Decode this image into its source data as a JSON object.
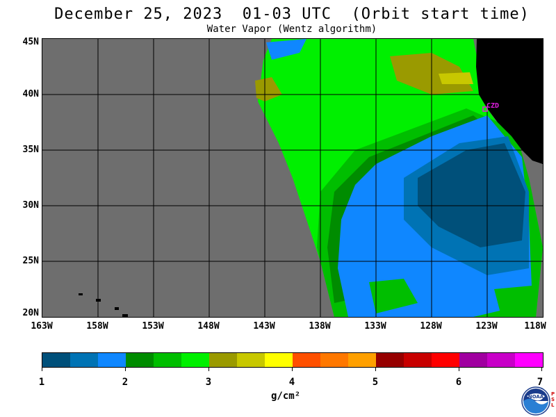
{
  "title": "December 25, 2023  01-03 UTC  (Orbit start time)",
  "subtitle": "Water Vapor (Wentz algorithm)",
  "map": {
    "background_color": "#6e6e6e",
    "land_color": "#000000",
    "lat_labels": [
      "45N",
      "40N",
      "35N",
      "30N",
      "25N",
      "20N"
    ],
    "lon_labels": [
      "163W",
      "158W",
      "153W",
      "148W",
      "143W",
      "138W",
      "133W",
      "128W",
      "123W",
      "118W"
    ],
    "station_label": "CZD"
  },
  "colorbar": {
    "colors": [
      "#00507a",
      "#0073b4",
      "#0f87ff",
      "#008c00",
      "#00be00",
      "#00f000",
      "#9a9a00",
      "#c8c800",
      "#ffff00",
      "#ff5000",
      "#ff7800",
      "#ffa000",
      "#960000",
      "#c80000",
      "#ff0000",
      "#a000a0",
      "#c800c8",
      "#ff00ff"
    ],
    "tick_labels": [
      "1",
      "2",
      "3",
      "4",
      "5",
      "6",
      "7"
    ],
    "units": "g/cm²"
  },
  "logo": {
    "name": "NOAA",
    "side_text": "PSL"
  }
}
